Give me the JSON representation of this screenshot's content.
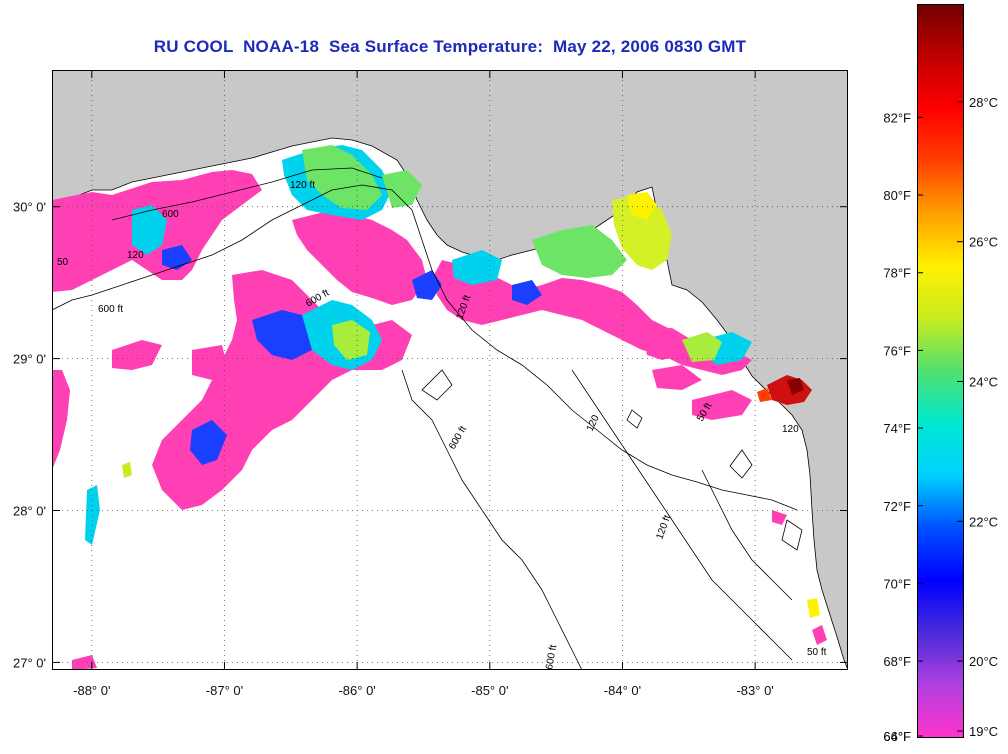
{
  "title": "RU COOL  NOAA-18  Sea Surface Temperature:  May 22, 2006 0830 GMT",
  "map": {
    "lon_range": [
      -88.3,
      -82.3
    ],
    "lat_range": [
      26.95,
      30.9
    ],
    "lon_ticks": [
      {
        "value": -88,
        "label": "-88° 0'"
      },
      {
        "value": -87,
        "label": "-87° 0'"
      },
      {
        "value": -86,
        "label": "-86° 0'"
      },
      {
        "value": -85,
        "label": "-85° 0'"
      },
      {
        "value": -84,
        "label": "-84° 0'"
      },
      {
        "value": -83,
        "label": "-83° 0'"
      }
    ],
    "lat_ticks": [
      {
        "value": 30,
        "label": "30° 0'"
      },
      {
        "value": 29,
        "label": "29° 0'"
      },
      {
        "value": 28,
        "label": "28° 0'"
      },
      {
        "value": 27,
        "label": "27° 0'"
      }
    ],
    "contour_labels": [
      "120 ft",
      "600 ft",
      "120 ft",
      "120 ft",
      "600 ft",
      "600 ft",
      "600 ft",
      "120",
      "50 ft",
      "120",
      "50 ft",
      "600",
      "50",
      "120"
    ],
    "colors": {
      "land": "#c8c8c8",
      "water": "#ffffff",
      "grid": "#555555",
      "contour": "#000000"
    }
  },
  "colorbar": {
    "fahrenheit": [
      {
        "value": 64,
        "label": "64°F"
      },
      {
        "value": 66,
        "label": "66°F"
      },
      {
        "value": 68,
        "label": "68°F"
      },
      {
        "value": 70,
        "label": "70°F"
      },
      {
        "value": 72,
        "label": "72°F"
      },
      {
        "value": 74,
        "label": "74°F"
      },
      {
        "value": 76,
        "label": "76°F"
      },
      {
        "value": 78,
        "label": "78°F"
      },
      {
        "value": 80,
        "label": "80°F"
      },
      {
        "value": 82,
        "label": "82°F"
      }
    ],
    "celsius": [
      {
        "value": 19,
        "label": "19°C"
      },
      {
        "value": 20,
        "label": "20°C"
      },
      {
        "value": 22,
        "label": "22°C"
      },
      {
        "value": 24,
        "label": "24°C"
      },
      {
        "value": 26,
        "label": "26°C"
      },
      {
        "value": 28,
        "label": "28°C"
      }
    ],
    "range_c": [
      18.9,
      29.4
    ],
    "gradient": [
      "#ff33cc",
      "#b040e0",
      "#4a2bd8",
      "#0000ff",
      "#0050ff",
      "#00d0ff",
      "#00e8d0",
      "#50e070",
      "#c8ec20",
      "#fff000",
      "#ffa000",
      "#ff4000",
      "#ff0000",
      "#c00000",
      "#700000"
    ]
  }
}
